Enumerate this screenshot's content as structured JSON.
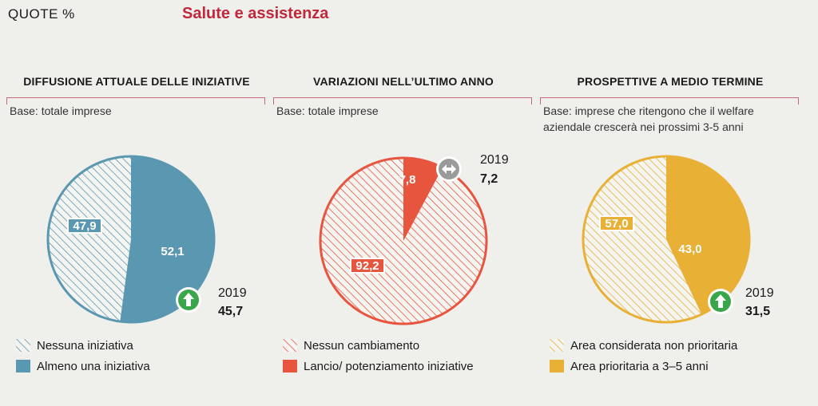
{
  "header": {
    "unit_label": "QUOTE %",
    "title": "Salute e assistenza"
  },
  "colors": {
    "blue": "#5a97b0",
    "red": "#e8553f",
    "gold": "#e8b035",
    "red_rule": "#c66a77",
    "title_red": "#c0283c",
    "arrow_green": "#3aa64a",
    "arrow_gray": "#9a9a9a"
  },
  "chart_data": [
    {
      "type": "pie",
      "title": "DIFFUSIONE ATTUALE DELLE INIZIATIVE",
      "base": "Base: totale imprese",
      "categories": [
        "Nessuna iniziativa",
        "Almeno una iniziativa"
      ],
      "values": [
        47.9,
        52.1
      ],
      "value_labels": [
        "47,9",
        "52,1"
      ],
      "comparison": {
        "label": "2019",
        "value": "45,7",
        "trend": "up"
      },
      "legend": [
        "Nessuna iniziativa",
        "Almeno una iniziativa"
      ]
    },
    {
      "type": "pie",
      "title": "VARIAZIONI NELL’ULTIMO ANNO",
      "base": "Base: totale imprese",
      "categories": [
        "Nessun cambiamento",
        "Lancio/ potenziamento iniziative"
      ],
      "values": [
        92.2,
        7.8
      ],
      "value_labels": [
        "92,2",
        "7,8"
      ],
      "comparison": {
        "label": "2019",
        "value": "7,2",
        "trend": "stable"
      },
      "legend": [
        "Nessun cambiamento",
        "Lancio/ potenziamento iniziative"
      ]
    },
    {
      "type": "pie",
      "title": "PROSPETTIVE A MEDIO TERMINE",
      "base": "Base: imprese che ritengono che il welfare aziendale crescerà nei prossimi 3-5 anni",
      "categories": [
        "Area considerata non prioritaria",
        "Area prioritaria a 3–5 anni"
      ],
      "values": [
        57.0,
        43.0
      ],
      "value_labels": [
        "57,0",
        "43,0"
      ],
      "comparison": {
        "label": "2019",
        "value": "31,5",
        "trend": "up"
      },
      "legend": [
        "Area considerata non prioritaria",
        "Area prioritaria a 3–5 anni"
      ]
    }
  ]
}
